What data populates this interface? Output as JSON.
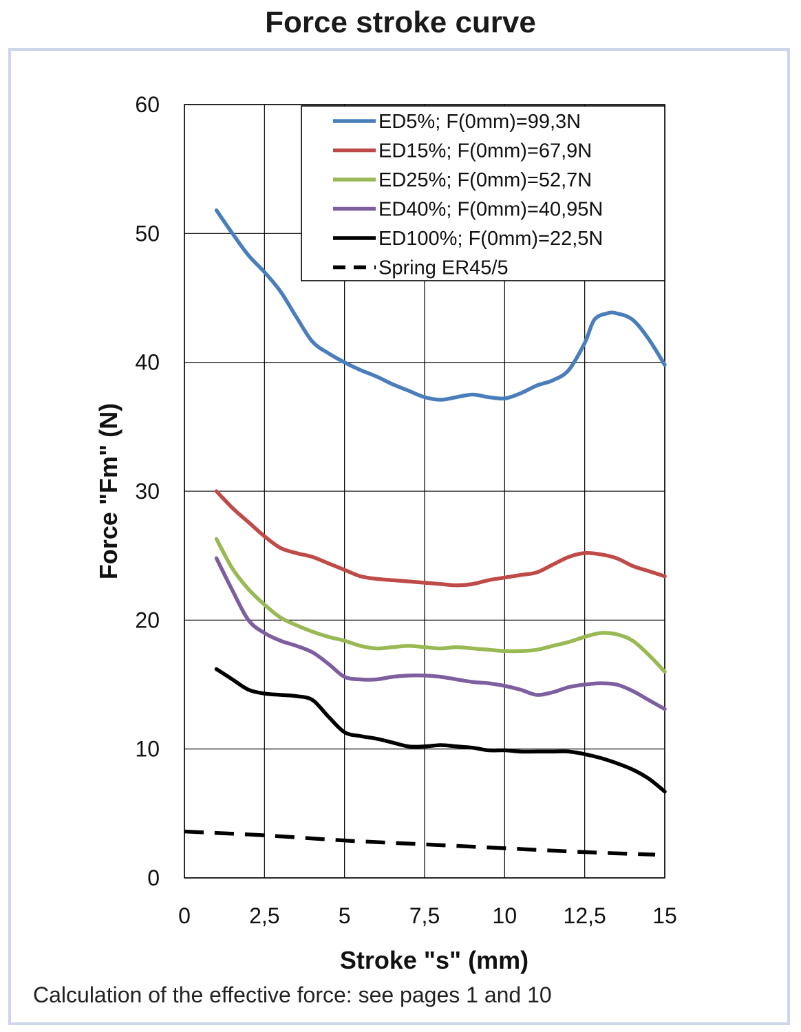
{
  "title": "Force stroke curve",
  "footer": "Calculation of the effective force: see pages 1 and 10",
  "chart_data": {
    "type": "line",
    "xlabel": "Stroke \"s\" (mm)",
    "ylabel": "Force \"Fm\" (N)",
    "xlim": [
      0,
      15
    ],
    "ylim": [
      0,
      60
    ],
    "xticks": [
      "0",
      "2,5",
      "5",
      "7,5",
      "10",
      "12,5",
      "15"
    ],
    "yticks": [
      "0",
      "10",
      "20",
      "30",
      "40",
      "50",
      "60"
    ],
    "grid": true,
    "legend_position": "top-right",
    "series": [
      {
        "name": "ED5%; F(0mm)=99,3N",
        "color": "#4a7ebb",
        "dash": "solid",
        "points": [
          [
            1,
            51.8
          ],
          [
            1.5,
            50
          ],
          [
            2,
            48.3
          ],
          [
            2.5,
            47
          ],
          [
            3,
            45.5
          ],
          [
            3.5,
            43.5
          ],
          [
            4,
            41.6
          ],
          [
            4.5,
            40.7
          ],
          [
            5,
            40
          ],
          [
            5.5,
            39.4
          ],
          [
            6,
            38.9
          ],
          [
            6.5,
            38.3
          ],
          [
            7,
            37.8
          ],
          [
            7.5,
            37.3
          ],
          [
            8,
            37.1
          ],
          [
            8.5,
            37.3
          ],
          [
            9,
            37.5
          ],
          [
            9.5,
            37.3
          ],
          [
            10,
            37.2
          ],
          [
            10.5,
            37.6
          ],
          [
            11,
            38.2
          ],
          [
            11.5,
            38.6
          ],
          [
            12,
            39.4
          ],
          [
            12.5,
            41.5
          ],
          [
            12.8,
            43.3
          ],
          [
            13.2,
            43.8
          ],
          [
            13.5,
            43.8
          ],
          [
            14,
            43.3
          ],
          [
            14.5,
            41.8
          ],
          [
            15,
            39.8
          ]
        ]
      },
      {
        "name": "ED15%; F(0mm)=67,9N",
        "color": "#be4b48",
        "dash": "solid",
        "points": [
          [
            1,
            30
          ],
          [
            1.5,
            28.7
          ],
          [
            2,
            27.6
          ],
          [
            2.5,
            26.5
          ],
          [
            3,
            25.6
          ],
          [
            3.5,
            25.2
          ],
          [
            4,
            24.9
          ],
          [
            4.5,
            24.4
          ],
          [
            5,
            23.9
          ],
          [
            5.5,
            23.4
          ],
          [
            6,
            23.2
          ],
          [
            6.5,
            23.1
          ],
          [
            7,
            23
          ],
          [
            7.5,
            22.9
          ],
          [
            8,
            22.8
          ],
          [
            8.5,
            22.7
          ],
          [
            9,
            22.8
          ],
          [
            9.5,
            23.1
          ],
          [
            10,
            23.3
          ],
          [
            10.5,
            23.5
          ],
          [
            11,
            23.7
          ],
          [
            11.5,
            24.3
          ],
          [
            12,
            24.9
          ],
          [
            12.5,
            25.2
          ],
          [
            13,
            25.1
          ],
          [
            13.5,
            24.8
          ],
          [
            14,
            24.2
          ],
          [
            14.5,
            23.8
          ],
          [
            15,
            23.4
          ]
        ]
      },
      {
        "name": "ED25%; F(0mm)=52,7N",
        "color": "#98b954",
        "dash": "solid",
        "points": [
          [
            1,
            26.3
          ],
          [
            1.5,
            24
          ],
          [
            2,
            22.4
          ],
          [
            2.5,
            21.2
          ],
          [
            3,
            20.2
          ],
          [
            3.5,
            19.6
          ],
          [
            4,
            19.1
          ],
          [
            4.5,
            18.7
          ],
          [
            5,
            18.4
          ],
          [
            5.5,
            18
          ],
          [
            6,
            17.8
          ],
          [
            6.5,
            17.9
          ],
          [
            7,
            18
          ],
          [
            7.5,
            17.9
          ],
          [
            8,
            17.8
          ],
          [
            8.5,
            17.9
          ],
          [
            9,
            17.8
          ],
          [
            9.5,
            17.7
          ],
          [
            10,
            17.6
          ],
          [
            10.5,
            17.6
          ],
          [
            11,
            17.7
          ],
          [
            11.5,
            18
          ],
          [
            12,
            18.3
          ],
          [
            12.5,
            18.7
          ],
          [
            13,
            19
          ],
          [
            13.5,
            18.9
          ],
          [
            14,
            18.4
          ],
          [
            14.5,
            17.3
          ],
          [
            15,
            16
          ]
        ]
      },
      {
        "name": "ED40%; F(0mm)=40,95N",
        "color": "#7d5fa0",
        "dash": "solid",
        "points": [
          [
            1,
            24.8
          ],
          [
            1.5,
            22.3
          ],
          [
            2,
            20
          ],
          [
            2.5,
            19
          ],
          [
            3,
            18.4
          ],
          [
            3.5,
            18
          ],
          [
            4,
            17.5
          ],
          [
            4.5,
            16.6
          ],
          [
            5,
            15.6
          ],
          [
            5.5,
            15.4
          ],
          [
            6,
            15.4
          ],
          [
            6.5,
            15.6
          ],
          [
            7,
            15.7
          ],
          [
            7.5,
            15.7
          ],
          [
            8,
            15.6
          ],
          [
            8.5,
            15.4
          ],
          [
            9,
            15.2
          ],
          [
            9.5,
            15.1
          ],
          [
            10,
            14.9
          ],
          [
            10.5,
            14.6
          ],
          [
            11,
            14.2
          ],
          [
            11.5,
            14.4
          ],
          [
            12,
            14.8
          ],
          [
            12.5,
            15
          ],
          [
            13,
            15.1
          ],
          [
            13.5,
            15
          ],
          [
            14,
            14.5
          ],
          [
            14.5,
            13.8
          ],
          [
            15,
            13.1
          ]
        ]
      },
      {
        "name": "ED100%; F(0mm)=22,5N",
        "color": "#000000",
        "dash": "solid",
        "points": [
          [
            1,
            16.2
          ],
          [
            1.5,
            15.4
          ],
          [
            2,
            14.6
          ],
          [
            2.5,
            14.3
          ],
          [
            3,
            14.2
          ],
          [
            3.5,
            14.1
          ],
          [
            4,
            13.8
          ],
          [
            4.5,
            12.5
          ],
          [
            5,
            11.3
          ],
          [
            5.5,
            11
          ],
          [
            6,
            10.8
          ],
          [
            6.5,
            10.5
          ],
          [
            7,
            10.2
          ],
          [
            7.5,
            10.2
          ],
          [
            8,
            10.3
          ],
          [
            8.5,
            10.2
          ],
          [
            9,
            10.1
          ],
          [
            9.5,
            9.9
          ],
          [
            10,
            9.9
          ],
          [
            10.5,
            9.8
          ],
          [
            11,
            9.8
          ],
          [
            11.5,
            9.8
          ],
          [
            12,
            9.8
          ],
          [
            12.5,
            9.6
          ],
          [
            13,
            9.3
          ],
          [
            13.5,
            8.9
          ],
          [
            14,
            8.4
          ],
          [
            14.5,
            7.7
          ],
          [
            15,
            6.7
          ]
        ]
      },
      {
        "name": "Spring ER45/5",
        "color": "#000000",
        "dash": "dashed",
        "points": [
          [
            0,
            3.6
          ],
          [
            2.5,
            3.3
          ],
          [
            5,
            2.9
          ],
          [
            7.5,
            2.6
          ],
          [
            10,
            2.3
          ],
          [
            12.5,
            2
          ],
          [
            14.7,
            1.8
          ]
        ]
      }
    ]
  }
}
